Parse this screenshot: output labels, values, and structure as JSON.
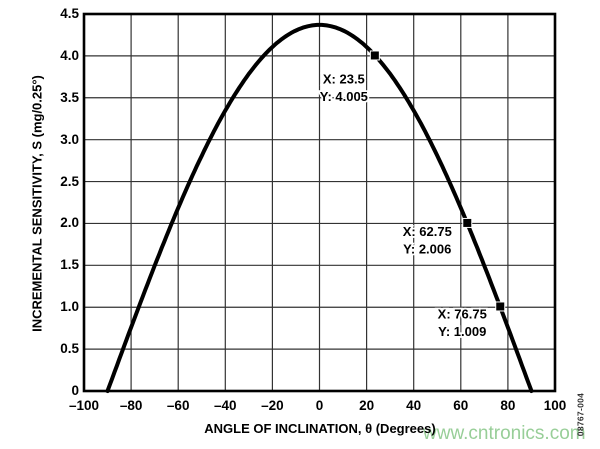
{
  "figure": {
    "background": "#ffffff",
    "figure_number": "08767-004",
    "watermark": {
      "text": "www.cntronics.com",
      "color": "#93cc93"
    }
  },
  "chart_data": {
    "type": "line",
    "title": "",
    "xlabel": "ANGLE OF INCLINATION, θ (Degrees)",
    "ylabel": "INCREMENTAL SENSITIVITY, S (mg/0.25°)",
    "xlim": [
      -100,
      100
    ],
    "ylim": [
      0,
      4.5
    ],
    "grid": true,
    "legend": "none",
    "x_ticks": [
      -100,
      -80,
      -60,
      -40,
      -20,
      0,
      20,
      40,
      60,
      80,
      100
    ],
    "x_tick_labels": [
      "–100",
      "–80",
      "–60",
      "–40",
      "–20",
      "0",
      "20",
      "40",
      "60",
      "80",
      "100"
    ],
    "y_ticks": [
      0,
      0.5,
      1.0,
      1.5,
      2.0,
      2.5,
      3.0,
      3.5,
      4.0,
      4.5
    ],
    "y_tick_labels": [
      "0",
      "0.5",
      "1.0",
      "1.5",
      "2.0",
      "2.5",
      "3.0",
      "3.5",
      "4.0",
      "4.5"
    ],
    "curve": {
      "name": "incremental-sensitivity-curve",
      "formula": "S = 4.37 × cos(θ)",
      "amplitude": 4.37,
      "theta_range_deg": [
        -90,
        90
      ],
      "sample_step_deg": 1,
      "color": "#000000",
      "samples": {
        "x": [
          -90,
          -80,
          -70,
          -60,
          -50,
          -40,
          -30,
          -20,
          -10,
          0,
          10,
          20,
          30,
          40,
          50,
          60,
          70,
          80,
          90
        ],
        "y": [
          0,
          0.76,
          1.49,
          2.19,
          2.81,
          3.35,
          3.78,
          4.11,
          4.3,
          4.37,
          4.3,
          4.11,
          3.78,
          3.35,
          2.81,
          2.19,
          1.49,
          0.76,
          0
        ]
      }
    },
    "annotated_points": [
      {
        "x": 23.5,
        "y": 4.005,
        "marker": "filled-square",
        "label_lines": [
          "X: 23.5",
          "Y: 4.005"
        ]
      },
      {
        "x": 62.75,
        "y": 2.006,
        "marker": "filled-square",
        "label_lines": [
          "X: 62.75",
          "Y: 2.006"
        ]
      },
      {
        "x": 76.75,
        "y": 1.009,
        "marker": "filled-square",
        "label_lines": [
          "X: 76.75",
          "Y: 1.009"
        ]
      }
    ]
  }
}
